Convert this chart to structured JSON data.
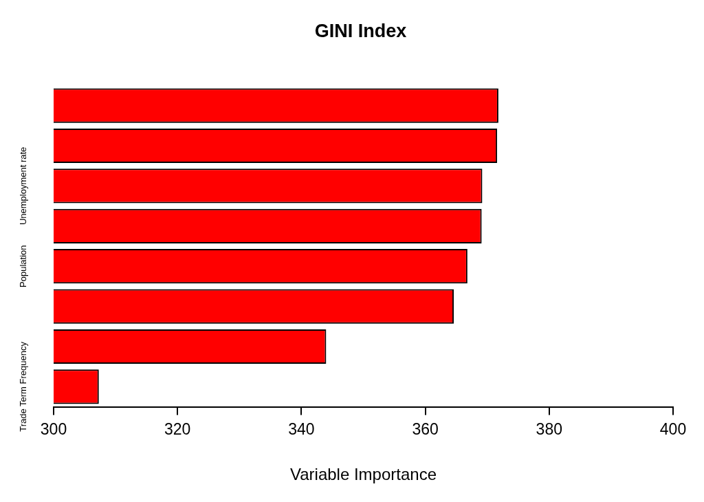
{
  "chart_data": {
    "type": "bar",
    "orientation": "horizontal",
    "title": "GINI Index",
    "xlabel": "Variable Importance",
    "categories": [
      null,
      null,
      "Unemployment rate",
      null,
      "Population",
      null,
      null,
      "Trade Term Frequency"
    ],
    "values": [
      371.8,
      371.6,
      369.2,
      369.1,
      366.8,
      364.6,
      344.0,
      307.3
    ],
    "color": "#ff0000",
    "xlim": [
      300,
      400
    ],
    "xticks": [
      300,
      320,
      340,
      360,
      380,
      400
    ]
  }
}
